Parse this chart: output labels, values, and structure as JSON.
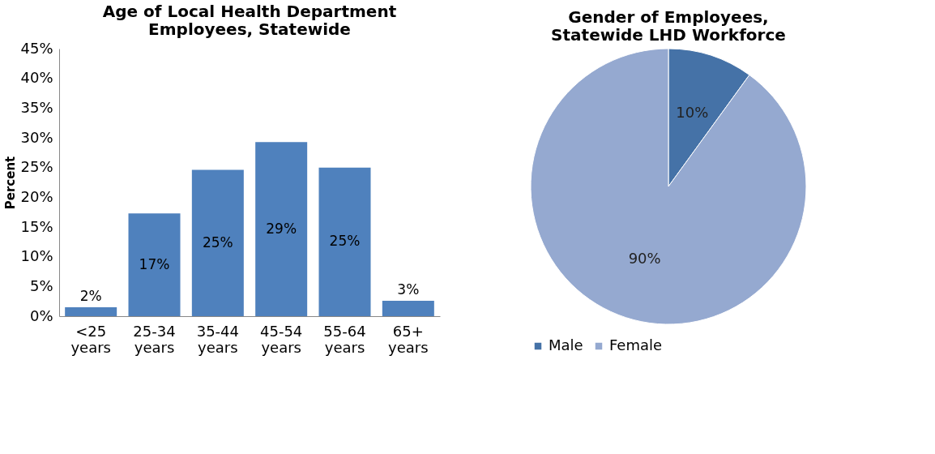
{
  "chart_data": [
    {
      "type": "bar",
      "title": "Age of Local Health Department Employees, Statewide",
      "ylabel": "Percent",
      "categories": [
        "<25 years",
        "25-34 years",
        "35-44 years",
        "45-54 years",
        "55-64 years",
        "65+ years"
      ],
      "values": [
        1.5,
        17.3,
        24.6,
        29.3,
        25.0,
        2.6
      ],
      "value_labels": [
        "2%",
        "17%",
        "25%",
        "29%",
        "25%",
        "3%"
      ],
      "color": "#4f81bd",
      "ylim": [
        0,
        45
      ],
      "yticks": [
        {
          "value": 0,
          "label": "0%"
        },
        {
          "value": 5,
          "label": "5%"
        },
        {
          "value": 10,
          "label": "10%"
        },
        {
          "value": 15,
          "label": "15%"
        },
        {
          "value": 20,
          "label": "20%"
        },
        {
          "value": 25,
          "label": "25%"
        },
        {
          "value": 30,
          "label": "30%"
        },
        {
          "value": 35,
          "label": "35%"
        },
        {
          "value": 40,
          "label": "40%"
        },
        {
          "value": 45,
          "label": "45%"
        }
      ],
      "grid": false
    },
    {
      "type": "pie",
      "title": "Gender of Employees, Statewide LHD Workforce",
      "categories": [
        "Male",
        "Female"
      ],
      "values": [
        10,
        90
      ],
      "value_labels": [
        "10%",
        "90%"
      ],
      "colors": [
        "#4572a7",
        "#95a9d0"
      ],
      "legend": "bottom"
    }
  ]
}
